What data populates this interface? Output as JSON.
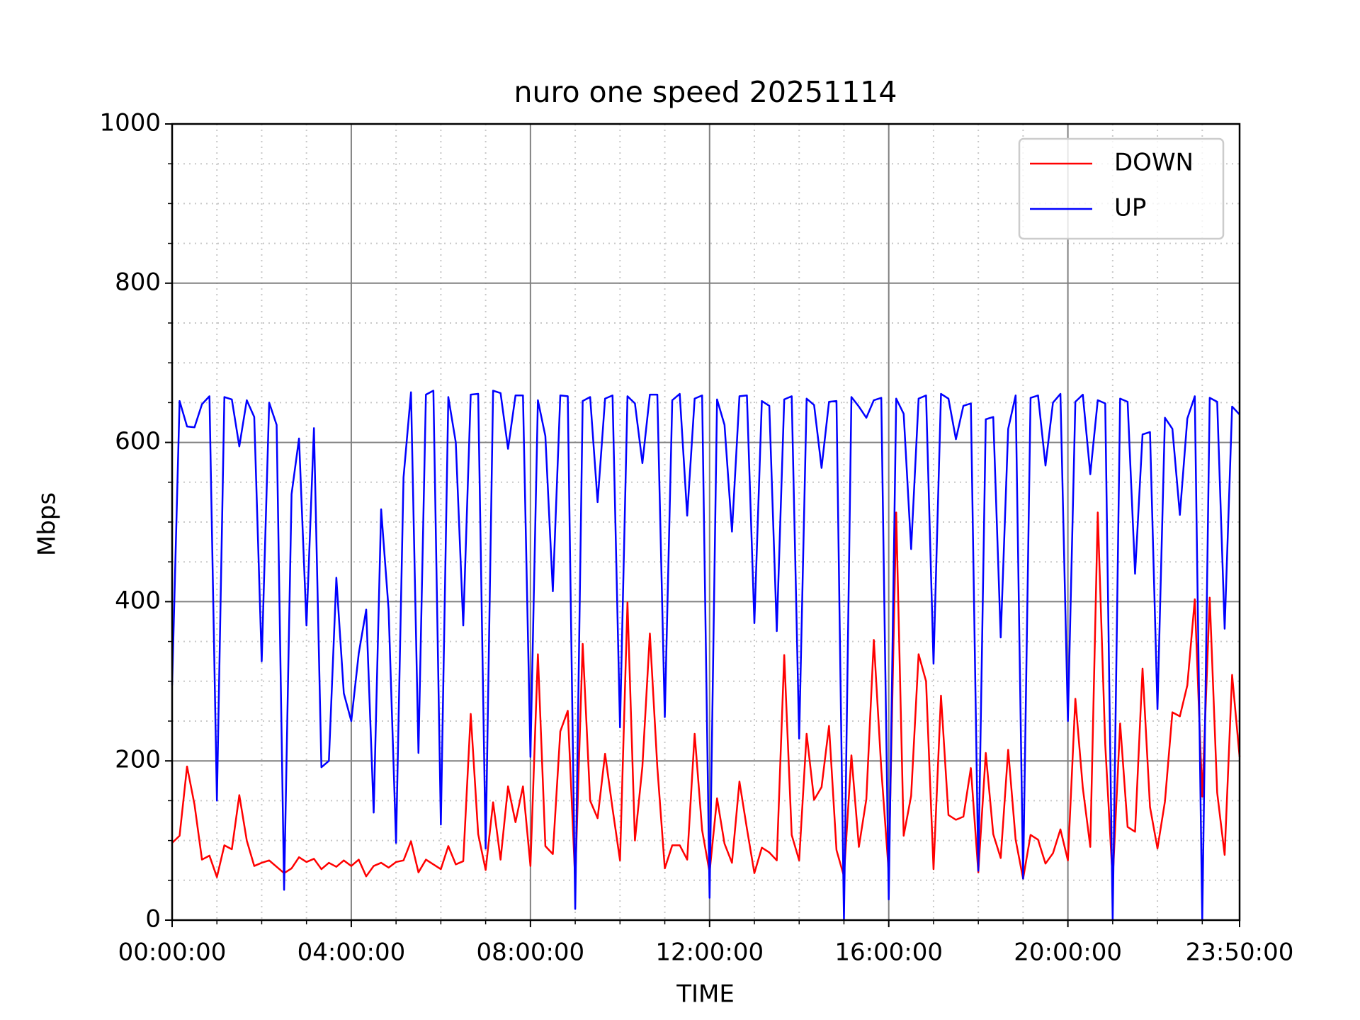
{
  "chart_data": {
    "type": "line",
    "title": "nuro one speed 20251114",
    "xlabel": "TIME",
    "ylabel": "Mbps",
    "x": [
      "00:00:00",
      "00:10:00",
      "00:20:00",
      "00:30:00",
      "00:40:00",
      "00:50:00",
      "01:00:00",
      "01:10:00",
      "01:20:00",
      "01:30:00",
      "01:40:00",
      "01:50:00",
      "02:00:00",
      "02:10:00",
      "02:20:00",
      "02:30:00",
      "02:40:00",
      "02:50:00",
      "03:00:00",
      "03:10:00",
      "03:20:00",
      "03:30:00",
      "03:40:00",
      "03:50:00",
      "04:00:00",
      "04:10:00",
      "04:20:00",
      "04:30:00",
      "04:40:00",
      "04:50:00",
      "05:00:00",
      "05:10:00",
      "05:20:00",
      "05:30:00",
      "05:40:00",
      "05:50:00",
      "06:00:00",
      "06:10:00",
      "06:20:00",
      "06:30:00",
      "06:40:00",
      "06:50:00",
      "07:00:00",
      "07:10:00",
      "07:20:00",
      "07:30:00",
      "07:40:00",
      "07:50:00",
      "08:00:00",
      "08:10:00",
      "08:20:00",
      "08:30:00",
      "08:40:00",
      "08:50:00",
      "09:00:00",
      "09:10:00",
      "09:20:00",
      "09:30:00",
      "09:40:00",
      "09:50:00",
      "10:00:00",
      "10:10:00",
      "10:20:00",
      "10:30:00",
      "10:40:00",
      "10:50:00",
      "11:00:00",
      "11:10:00",
      "11:20:00",
      "11:30:00",
      "11:40:00",
      "11:50:00",
      "12:00:00",
      "12:10:00",
      "12:20:00",
      "12:30:00",
      "12:40:00",
      "12:50:00",
      "13:00:00",
      "13:10:00",
      "13:20:00",
      "13:30:00",
      "13:40:00",
      "13:50:00",
      "14:00:00",
      "14:10:00",
      "14:20:00",
      "14:30:00",
      "14:40:00",
      "14:50:00",
      "15:00:00",
      "15:10:00",
      "15:20:00",
      "15:30:00",
      "15:40:00",
      "15:50:00",
      "16:00:00",
      "16:10:00",
      "16:20:00",
      "16:30:00",
      "16:40:00",
      "16:50:00",
      "17:00:00",
      "17:10:00",
      "17:20:00",
      "17:30:00",
      "17:40:00",
      "17:50:00",
      "18:00:00",
      "18:10:00",
      "18:20:00",
      "18:30:00",
      "18:40:00",
      "18:50:00",
      "19:00:00",
      "19:10:00",
      "19:20:00",
      "19:30:00",
      "19:40:00",
      "19:50:00",
      "20:00:00",
      "20:10:00",
      "20:20:00",
      "20:30:00",
      "20:40:00",
      "20:50:00",
      "21:00:00",
      "21:10:00",
      "21:20:00",
      "21:30:00",
      "21:40:00",
      "21:50:00",
      "22:00:00",
      "22:10:00",
      "22:20:00",
      "22:30:00",
      "22:40:00",
      "22:50:00",
      "23:00:00",
      "23:10:00",
      "23:20:00",
      "23:30:00",
      "23:40:00",
      "23:50:00"
    ],
    "series": [
      {
        "name": "DOWN",
        "color": "#ff0000",
        "values": [
          97,
          106,
          193,
          145,
          76,
          81,
          54,
          94,
          89,
          157,
          100,
          68,
          72,
          75,
          67,
          59,
          65,
          79,
          73,
          77,
          64,
          72,
          67,
          75,
          68,
          76,
          55,
          68,
          72,
          66,
          73,
          75,
          99,
          60,
          76,
          70,
          64,
          93,
          70,
          74,
          259,
          108,
          63,
          148,
          76,
          168,
          123,
          168,
          68,
          334,
          93,
          83,
          237,
          263,
          50,
          347,
          150,
          128,
          209,
          140,
          75,
          399,
          100,
          193,
          360,
          192,
          65,
          94,
          94,
          76,
          234,
          113,
          60,
          153,
          96,
          72,
          174,
          115,
          59,
          91,
          85,
          75,
          333,
          107,
          75,
          234,
          151,
          167,
          244,
          88,
          55,
          207,
          92,
          152,
          352,
          190,
          60,
          512,
          106,
          156,
          334,
          300,
          64,
          282,
          132,
          126,
          130,
          191,
          60,
          210,
          108,
          78,
          214,
          101,
          52,
          107,
          101,
          71,
          84,
          114,
          75,
          278,
          166,
          92,
          512,
          221,
          50,
          247,
          117,
          111,
          316,
          142,
          90,
          149,
          261,
          256,
          295,
          403,
          155,
          405,
          160,
          82,
          308,
          205
        ]
      },
      {
        "name": "UP",
        "color": "#0000ff",
        "values": [
          295,
          652,
          620,
          619,
          648,
          658,
          150,
          657,
          654,
          595,
          653,
          632,
          325,
          650,
          622,
          38,
          535,
          605,
          370,
          618,
          192,
          200,
          430,
          285,
          250,
          335,
          390,
          135,
          516,
          390,
          97,
          556,
          663,
          210,
          660,
          665,
          120,
          657,
          600,
          370,
          660,
          661,
          90,
          665,
          662,
          592,
          659,
          659,
          205,
          653,
          608,
          413,
          659,
          658,
          14,
          652,
          657,
          525,
          655,
          659,
          242,
          658,
          649,
          574,
          660,
          660,
          255,
          653,
          661,
          508,
          655,
          659,
          28,
          654,
          622,
          488,
          658,
          659,
          373,
          652,
          646,
          363,
          654,
          658,
          228,
          655,
          647,
          568,
          651,
          652,
          0,
          657,
          645,
          631,
          653,
          656,
          26,
          655,
          636,
          466,
          655,
          659,
          322,
          661,
          655,
          604,
          646,
          649,
          62,
          629,
          632,
          355,
          617,
          659,
          52,
          656,
          659,
          571,
          650,
          661,
          250,
          651,
          660,
          560,
          653,
          649,
          0,
          655,
          651,
          435,
          610,
          613,
          265,
          631,
          617,
          509,
          630,
          658,
          0,
          656,
          651,
          366,
          645,
          635
        ]
      }
    ],
    "xlim": [
      "00:00:00",
      "23:50:00"
    ],
    "xticks": [
      "00:00:00",
      "04:00:00",
      "08:00:00",
      "12:00:00",
      "16:00:00",
      "20:00:00",
      "23:50:00"
    ],
    "xminorticks": [
      "01:00:00",
      "02:00:00",
      "03:00:00",
      "05:00:00",
      "06:00:00",
      "07:00:00",
      "09:00:00",
      "10:00:00",
      "11:00:00",
      "13:00:00",
      "14:00:00",
      "15:00:00",
      "17:00:00",
      "18:00:00",
      "19:00:00",
      "21:00:00",
      "22:00:00",
      "23:00:00"
    ],
    "ylim": [
      0,
      1000
    ],
    "yticks": [
      0,
      200,
      400,
      600,
      800,
      1000
    ],
    "yminorticks": [
      50,
      100,
      150,
      250,
      300,
      350,
      450,
      500,
      550,
      650,
      700,
      750,
      850,
      900,
      950
    ],
    "grid": true,
    "minor_grid": true,
    "legend": "upper right"
  }
}
